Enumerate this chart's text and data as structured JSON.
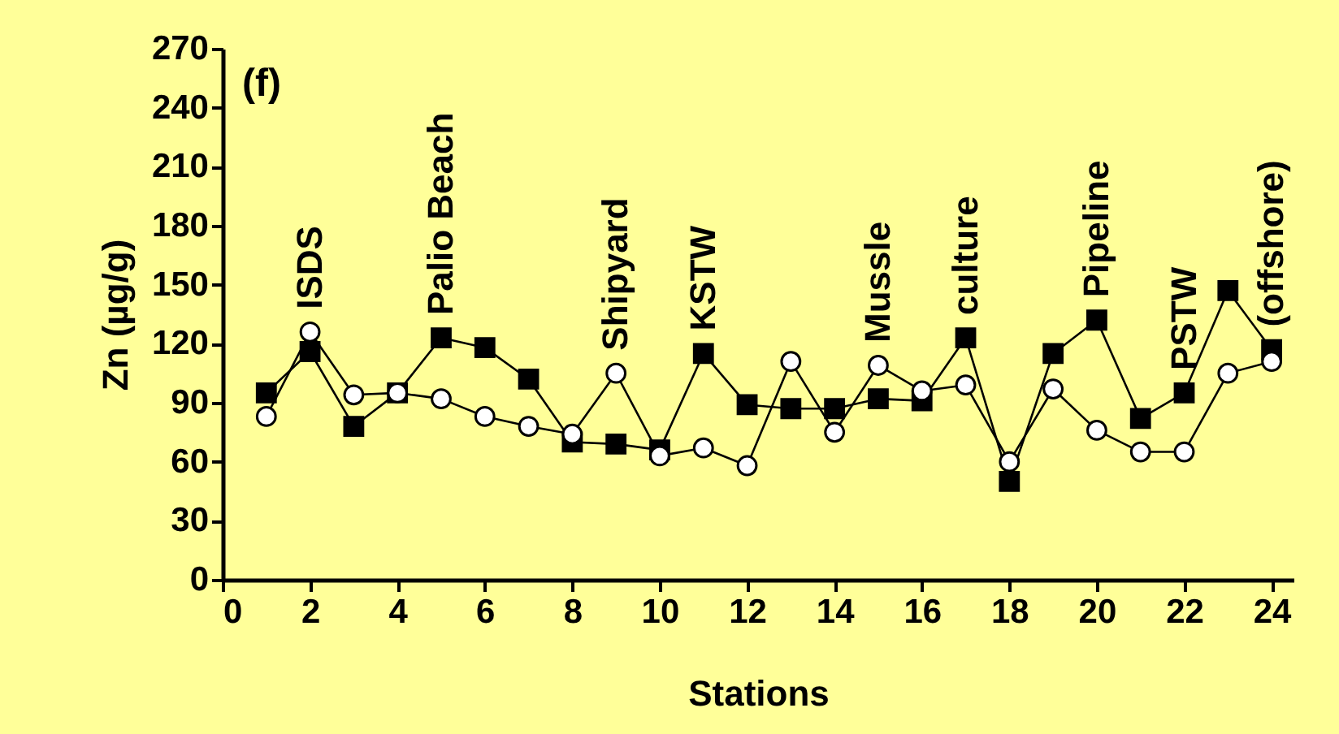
{
  "chart_data": {
    "type": "line",
    "xlabel": "Stations",
    "ylabel": "Zn (µg/g)",
    "x": [
      1,
      2,
      3,
      4,
      5,
      6,
      7,
      8,
      9,
      10,
      11,
      12,
      13,
      14,
      15,
      16,
      17,
      18,
      19,
      20,
      21,
      22,
      23,
      24
    ],
    "series": [
      {
        "color": "#000000",
        "marker": "square",
        "values": [
          95,
          116,
          78,
          95,
          123,
          118,
          102,
          70,
          69,
          66,
          115,
          89,
          87,
          87,
          92,
          91,
          123,
          50,
          115,
          132,
          82,
          95,
          147,
          117
        ]
      },
      {
        "color": "#000000",
        "marker": "circle",
        "values": [
          83,
          126,
          94,
          95,
          92,
          83,
          78,
          74,
          105,
          63,
          67,
          58,
          111,
          75,
          109,
          96,
          99,
          60,
          97,
          76,
          65,
          65,
          105,
          111
        ]
      }
    ],
    "xlim": [
      0,
      24.5
    ],
    "xticks": [
      0,
      2,
      4,
      6,
      8,
      10,
      12,
      14,
      16,
      18,
      20,
      22,
      24
    ],
    "ylim": [
      0,
      270
    ],
    "yticks": [
      0,
      30,
      60,
      90,
      120,
      150,
      180,
      210,
      240,
      270
    ],
    "grid": false,
    "line_style": "solid",
    "annotations": [
      "(f)",
      {
        "text": "ISDS",
        "x": 2,
        "y": 126
      },
      {
        "text": "Palio Beach",
        "x": 5,
        "y": 123
      },
      {
        "text": "Shipyard",
        "x": 9,
        "y": 105
      },
      {
        "text": "KSTW",
        "x": 11,
        "y": 115
      },
      {
        "text": "Mussle",
        "x": 15,
        "y": 109
      },
      {
        "text": "culture",
        "x": 17,
        "y": 123
      },
      {
        "text": "Pipeline",
        "x": 20,
        "y": 132
      },
      {
        "text": "PSTW",
        "x": 22,
        "y": 95
      },
      {
        "text": "(offshore)",
        "x": 24,
        "y": 117
      }
    ]
  }
}
